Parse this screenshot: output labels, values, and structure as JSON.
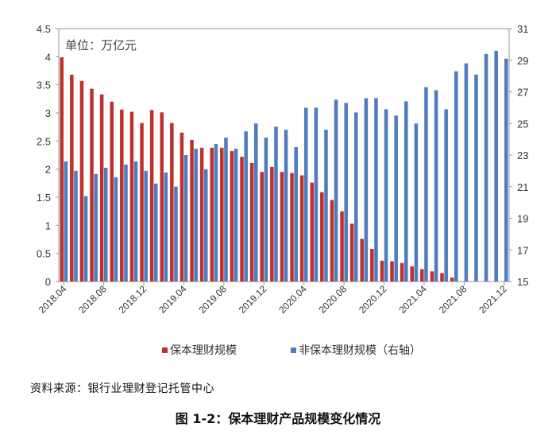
{
  "chart_data": {
    "type": "bar",
    "unit_label": "单位：万亿元",
    "categories": [
      "2018.04",
      "2018.05",
      "2018.06",
      "2018.07",
      "2018.08",
      "2018.09",
      "2018.10",
      "2018.11",
      "2018.12",
      "2019.01",
      "2019.02",
      "2019.03",
      "2019.04",
      "2019.05",
      "2019.06",
      "2019.07",
      "2019.08",
      "2019.09",
      "2019.10",
      "2019.11",
      "2019.12",
      "2020.01",
      "2020.02",
      "2020.03",
      "2020.04",
      "2020.05",
      "2020.06",
      "2020.07",
      "2020.08",
      "2020.09",
      "2020.10",
      "2020.11",
      "2020.12",
      "2021.01",
      "2021.02",
      "2021.03",
      "2021.04",
      "2021.05",
      "2021.06",
      "2021.07",
      "2021.08",
      "2021.09",
      "2021.10",
      "2021.11",
      "2021.12"
    ],
    "xtick_labels": [
      "2018.04",
      "2018.08",
      "2018.12",
      "2019.04",
      "2019.08",
      "2019.12",
      "2020.04",
      "2020.08",
      "2020.12",
      "2021.04",
      "2021.08",
      "2021.12"
    ],
    "series": [
      {
        "name": "保本理财规模",
        "axis": "left",
        "color": "#C0312E",
        "values": [
          3.99,
          3.68,
          3.57,
          3.43,
          3.33,
          3.2,
          3.06,
          3.02,
          2.82,
          3.05,
          3.01,
          2.82,
          2.65,
          2.52,
          2.38,
          2.38,
          2.38,
          2.32,
          2.22,
          2.11,
          1.95,
          2.04,
          1.95,
          1.93,
          1.89,
          1.76,
          1.59,
          1.45,
          1.25,
          1.03,
          0.76,
          0.58,
          0.37,
          0.36,
          0.33,
          0.27,
          0.22,
          0.18,
          0.15,
          0.07,
          null,
          null,
          null,
          null,
          null
        ]
      },
      {
        "name": "非保本理财规模（右轴）",
        "axis": "right",
        "color": "#4F7BC1",
        "values": [
          22.6,
          22.0,
          20.4,
          21.8,
          22.2,
          21.6,
          22.4,
          22.6,
          22.0,
          21.2,
          21.9,
          21.0,
          23.0,
          23.4,
          22.1,
          23.7,
          24.1,
          23.4,
          24.5,
          25.0,
          24.1,
          24.8,
          24.6,
          23.5,
          26.0,
          26.0,
          24.6,
          26.5,
          26.3,
          25.7,
          26.6,
          26.6,
          25.9,
          25.5,
          26.4,
          25.0,
          27.3,
          27.1,
          25.9,
          28.3,
          28.8,
          28.1,
          29.4,
          29.6,
          29.1
        ]
      }
    ],
    "y_left": {
      "min": 0,
      "max": 4.5,
      "ticks": [
        "0",
        "0.5",
        "1",
        "1.5",
        "2",
        "2.5",
        "3",
        "3.5",
        "4",
        "4.5"
      ]
    },
    "y_right": {
      "min": 15,
      "max": 31,
      "ticks": [
        "15",
        "17",
        "19",
        "21",
        "23",
        "25",
        "27",
        "29",
        "31"
      ]
    },
    "legend_position": "bottom",
    "grid": false
  },
  "source": "资料来源：银行业理财登记托管中心",
  "figure_title": "图 1-2：保本理财产品规模变化情况"
}
